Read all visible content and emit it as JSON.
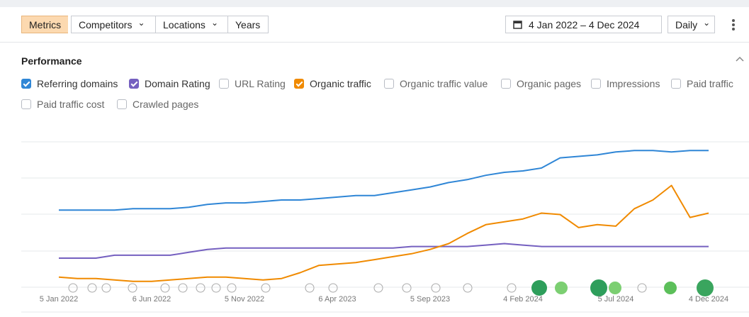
{
  "toolbar": {
    "tabs": [
      "Metrics",
      "Competitors",
      "Locations",
      "Years"
    ],
    "date_range": "4 Jan 2022 – 4 Dec 2024",
    "granularity": "Daily"
  },
  "panel": {
    "title": "Performance",
    "unchecked_metrics": [
      "URL Rating",
      "Organic traffic value",
      "Organic pages",
      "Impressions",
      "Paid traffic",
      "Paid traffic cost",
      "Crawled pages"
    ]
  },
  "chart_data": {
    "type": "line",
    "xticks": [
      "5 Jan 2022",
      "6 Jun 2022",
      "5 Nov 2022",
      "6 Apr 2023",
      "5 Sep 2023",
      "4 Feb 2024",
      "5 Jul 2024",
      "4 Dec 2024"
    ],
    "ylim": [
      0,
      100
    ],
    "series": [
      {
        "name": "Referring domains",
        "color": "#2f86d6",
        "values": [
          53,
          53,
          53,
          53,
          54,
          54,
          54,
          55,
          57,
          58,
          58,
          59,
          60,
          60,
          61,
          62,
          63,
          63,
          65,
          67,
          69,
          72,
          74,
          77,
          79,
          80,
          82,
          89,
          90,
          91,
          93,
          94,
          94,
          93,
          94,
          94
        ]
      },
      {
        "name": "Domain Rating",
        "color": "#7560c0",
        "values": [
          20,
          20,
          20,
          22,
          22,
          22,
          22,
          24,
          26,
          27,
          27,
          27,
          27,
          27,
          27,
          27,
          27,
          27,
          27,
          28,
          28,
          28,
          28,
          29,
          30,
          29,
          28,
          28,
          28,
          28,
          28,
          28,
          28,
          28,
          28,
          28
        ]
      },
      {
        "name": "Organic traffic",
        "color": "#f08a00",
        "values": [
          7,
          6,
          6,
          5,
          4,
          4,
          5,
          6,
          7,
          7,
          6,
          5,
          6,
          10,
          15,
          16,
          17,
          19,
          21,
          23,
          26,
          30,
          37,
          43,
          45,
          47,
          51,
          50,
          41,
          43,
          42,
          54,
          60,
          70,
          48,
          51
        ]
      }
    ]
  }
}
